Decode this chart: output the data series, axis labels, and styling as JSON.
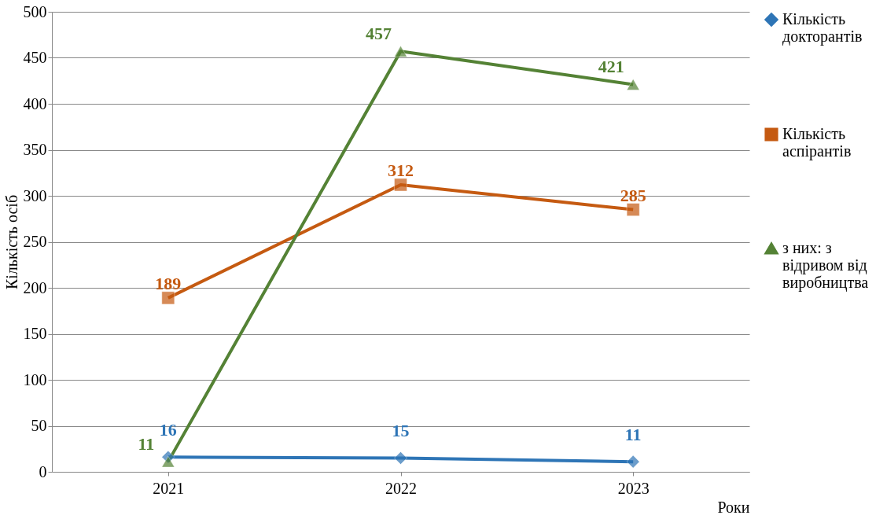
{
  "chart_data": {
    "type": "line",
    "xlabel": "Роки",
    "ylabel": "Кількість осіб",
    "categories": [
      "2021",
      "2022",
      "2023"
    ],
    "series": [
      {
        "name": "Кількість докторантів",
        "color": "#2e75b6",
        "marker": "diamond",
        "values": [
          16,
          15,
          11
        ]
      },
      {
        "name": "Кількість аспірантів",
        "color": "#c55a11",
        "marker": "square",
        "values": [
          189,
          312,
          285
        ]
      },
      {
        "name": "з них: з відривом від виробництва",
        "color": "#548235",
        "marker": "triangle",
        "values": [
          11,
          457,
          421
        ]
      }
    ],
    "ylim": [
      0,
      500
    ],
    "yticks": [
      0,
      50,
      100,
      150,
      200,
      250,
      300,
      350,
      400,
      450,
      500
    ],
    "grid": "y",
    "legend": "right",
    "data_labels": true,
    "line_style": "solid"
  }
}
